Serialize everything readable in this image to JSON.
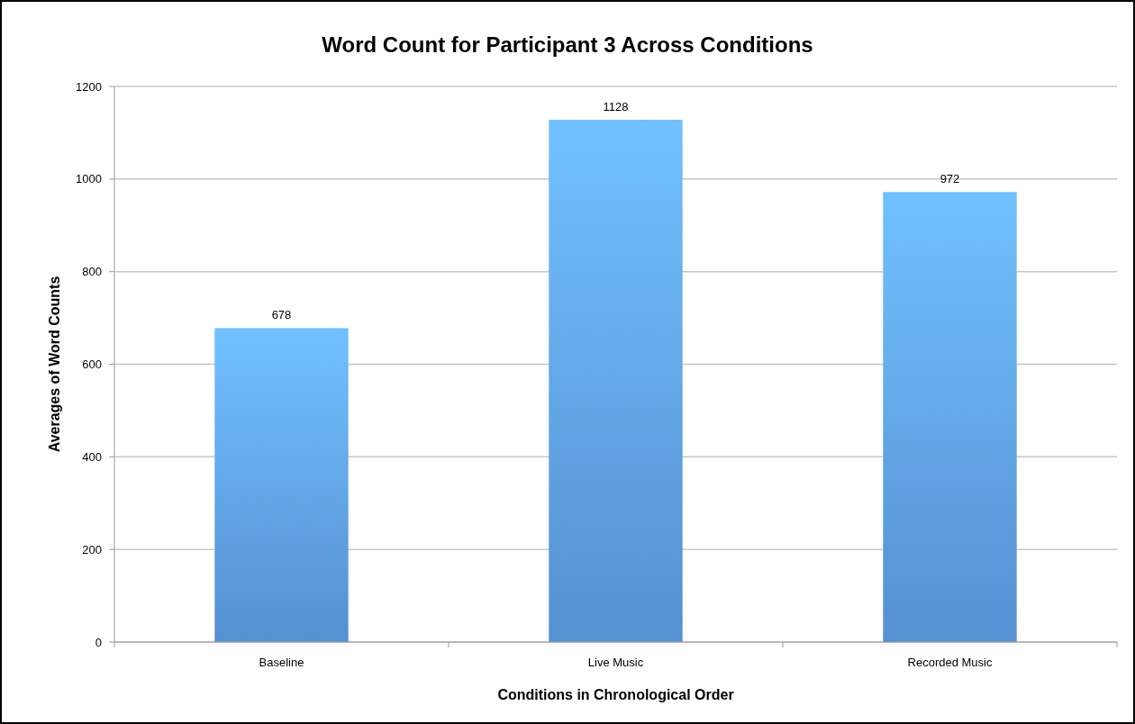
{
  "chart_data": {
    "type": "bar",
    "title": "Word Count for Participant 3 Across Conditions",
    "xlabel": "Conditions in Chronological Order",
    "ylabel": "Averages of Word Counts",
    "categories": [
      "Baseline",
      "Live Music",
      "Recorded Music"
    ],
    "values": [
      678,
      1128,
      972
    ],
    "color": "#5b9be0",
    "data_labels": true,
    "ylim": [
      0,
      1200
    ],
    "yticks": [
      0,
      200,
      400,
      600,
      800,
      1000,
      1200
    ],
    "grid": "y"
  }
}
